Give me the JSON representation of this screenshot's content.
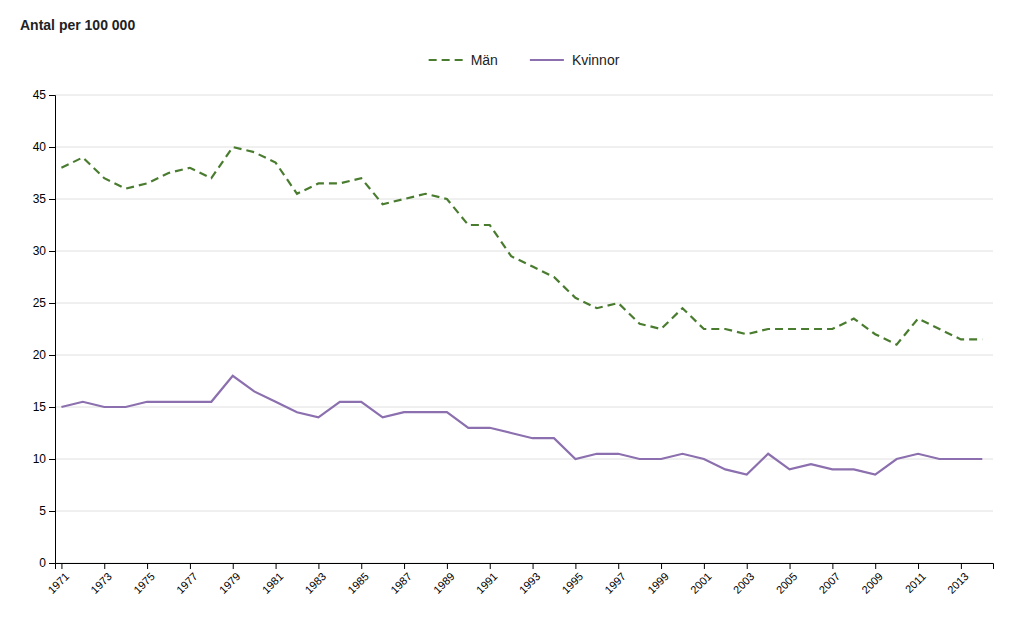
{
  "chart_data": {
    "type": "line",
    "ylabel": "Antal per 100 000",
    "x": [
      1971,
      1972,
      1973,
      1974,
      1975,
      1976,
      1977,
      1978,
      1979,
      1980,
      1981,
      1982,
      1983,
      1984,
      1985,
      1986,
      1987,
      1988,
      1989,
      1990,
      1991,
      1992,
      1993,
      1994,
      1995,
      1996,
      1997,
      1998,
      1999,
      2000,
      2001,
      2002,
      2003,
      2004,
      2005,
      2006,
      2007,
      2008,
      2009,
      2010,
      2011,
      2012,
      2013,
      2014
    ],
    "series": [
      {
        "name": "Män",
        "color": "#4a7c2f",
        "line_style": "dashed",
        "values": [
          38.0,
          39.0,
          37.0,
          36.0,
          36.5,
          37.5,
          38.0,
          37.0,
          40.0,
          39.5,
          38.5,
          35.5,
          36.5,
          36.5,
          37.0,
          34.5,
          35.0,
          35.5,
          35.0,
          32.5,
          32.5,
          29.5,
          28.5,
          27.5,
          25.5,
          24.5,
          25.0,
          23.0,
          22.5,
          24.5,
          22.5,
          22.5,
          22.0,
          22.5,
          22.5,
          22.5,
          22.5,
          23.5,
          22.0,
          21.0,
          23.5,
          22.5,
          21.5,
          21.5
        ]
      },
      {
        "name": "Kvinnor",
        "color": "#8b6fae",
        "line_style": "solid",
        "values": [
          15.0,
          15.5,
          15.0,
          15.0,
          15.5,
          15.5,
          15.5,
          15.5,
          18.0,
          16.5,
          15.5,
          14.5,
          14.0,
          15.5,
          15.5,
          14.0,
          14.5,
          14.5,
          14.5,
          13.0,
          13.0,
          12.5,
          12.0,
          12.0,
          10.0,
          10.5,
          10.5,
          10.0,
          10.0,
          10.5,
          10.0,
          9.0,
          8.5,
          10.5,
          9.0,
          9.5,
          9.0,
          9.0,
          8.5,
          10.0,
          10.5,
          10.0,
          10.0,
          10.0
        ]
      }
    ],
    "xlim": [
      1970.7,
      2014.5
    ],
    "xticks": [
      1971,
      1973,
      1975,
      1977,
      1979,
      1981,
      1983,
      1985,
      1987,
      1989,
      1991,
      1993,
      1995,
      1997,
      1999,
      2001,
      2003,
      2005,
      2007,
      2009,
      2011,
      2013
    ],
    "ylim": [
      0,
      45
    ],
    "yticks": [
      0,
      5,
      10,
      15,
      20,
      25,
      30,
      35,
      40,
      45
    ],
    "grid": true,
    "legend": "top"
  }
}
